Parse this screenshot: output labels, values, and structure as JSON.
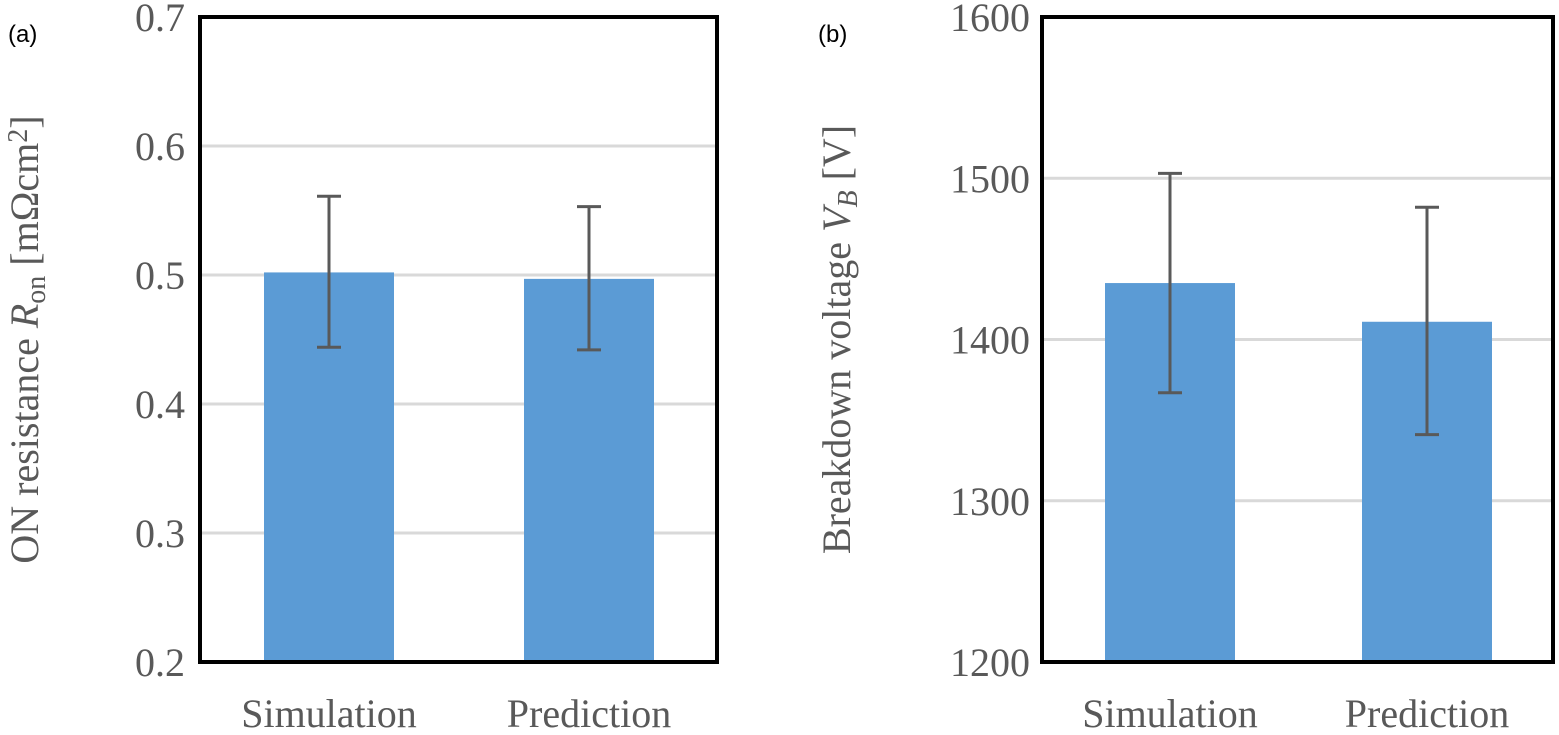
{
  "chart_data": [
    {
      "type": "bar",
      "panel_label": "(a)",
      "categories": [
        "Simulation",
        "Prediction"
      ],
      "values": [
        0.502,
        0.497
      ],
      "error_upper": [
        0.561,
        0.553
      ],
      "error_lower": [
        0.444,
        0.442
      ],
      "ylabel_parts": [
        {
          "text": "ON resistance ",
          "style": "normal"
        },
        {
          "text": "R",
          "style": "italic"
        },
        {
          "text": "on",
          "style": "sub"
        },
        {
          "text": " [mΩcm",
          "style": "normal"
        },
        {
          "text": "2",
          "style": "sup"
        },
        {
          "text": "]",
          "style": "normal"
        }
      ],
      "ylim": [
        0.2,
        0.7
      ],
      "yticks": [
        0.2,
        0.3,
        0.4,
        0.5,
        0.6,
        0.7
      ],
      "ytick_labels": [
        "0.2",
        "0.3",
        "0.4",
        "0.5",
        "0.6",
        "0.7"
      ],
      "grid": true,
      "bar_color": "#5B9BD5",
      "error_color": "#595959"
    },
    {
      "type": "bar",
      "panel_label": "(b)",
      "categories": [
        "Simulation",
        "Prediction"
      ],
      "values": [
        1435,
        1411
      ],
      "error_upper": [
        1503,
        1482
      ],
      "error_lower": [
        1367,
        1341
      ],
      "ylabel_parts": [
        {
          "text": "Breakdown voltage ",
          "style": "normal"
        },
        {
          "text": "V",
          "style": "italic"
        },
        {
          "text": "B",
          "style": "italic-sub"
        },
        {
          "text": " [V]",
          "style": "normal"
        }
      ],
      "ylim": [
        1200,
        1600
      ],
      "yticks": [
        1200,
        1300,
        1400,
        1500,
        1600
      ],
      "ytick_labels": [
        "1200",
        "1300",
        "1400",
        "1500",
        "1600"
      ],
      "grid": true,
      "bar_color": "#5B9BD5",
      "error_color": "#595959"
    }
  ]
}
